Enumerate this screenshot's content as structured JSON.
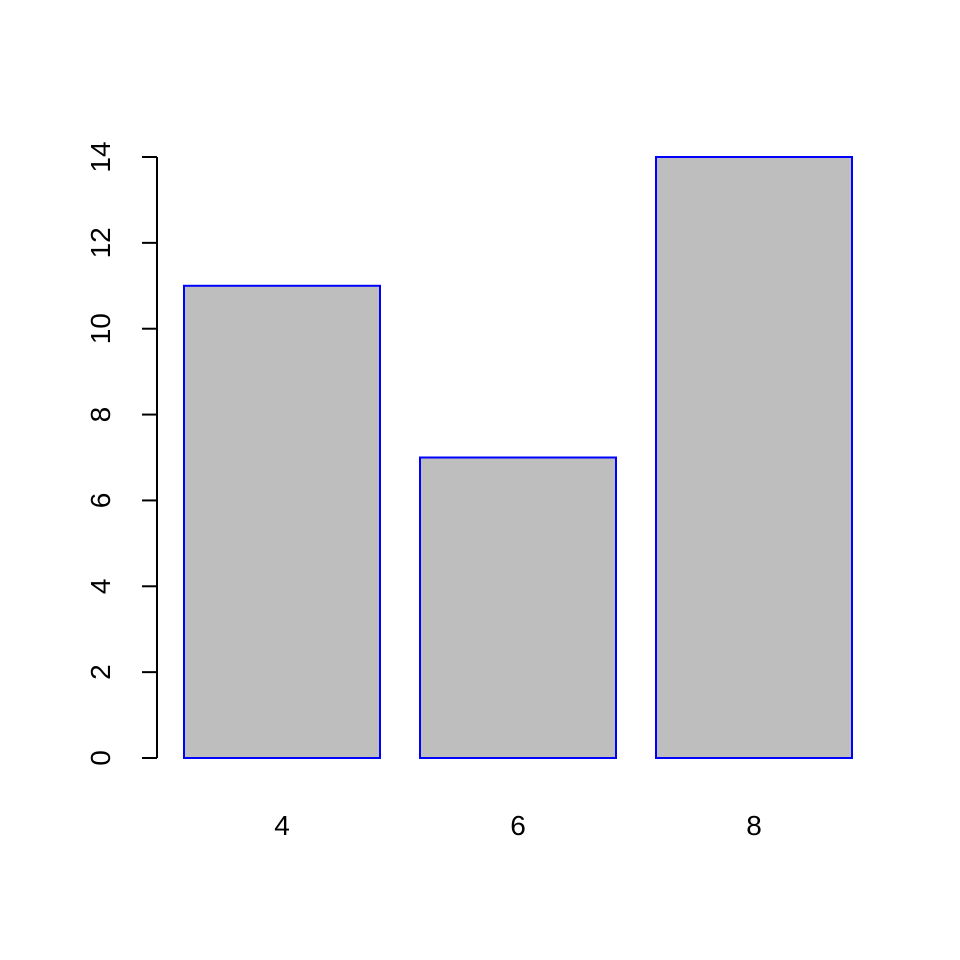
{
  "chart_data": {
    "type": "bar",
    "categories": [
      "4",
      "6",
      "8"
    ],
    "values": [
      11,
      7,
      14
    ],
    "title": "",
    "xlabel": "",
    "ylabel": "",
    "ylim": [
      0,
      14
    ],
    "yticks": [
      "0",
      "2",
      "4",
      "6",
      "8",
      "10",
      "12",
      "14"
    ],
    "grid": false,
    "bar_fill": "#bebebe",
    "bar_border": "#0000ff",
    "axis_color": "#000000"
  }
}
